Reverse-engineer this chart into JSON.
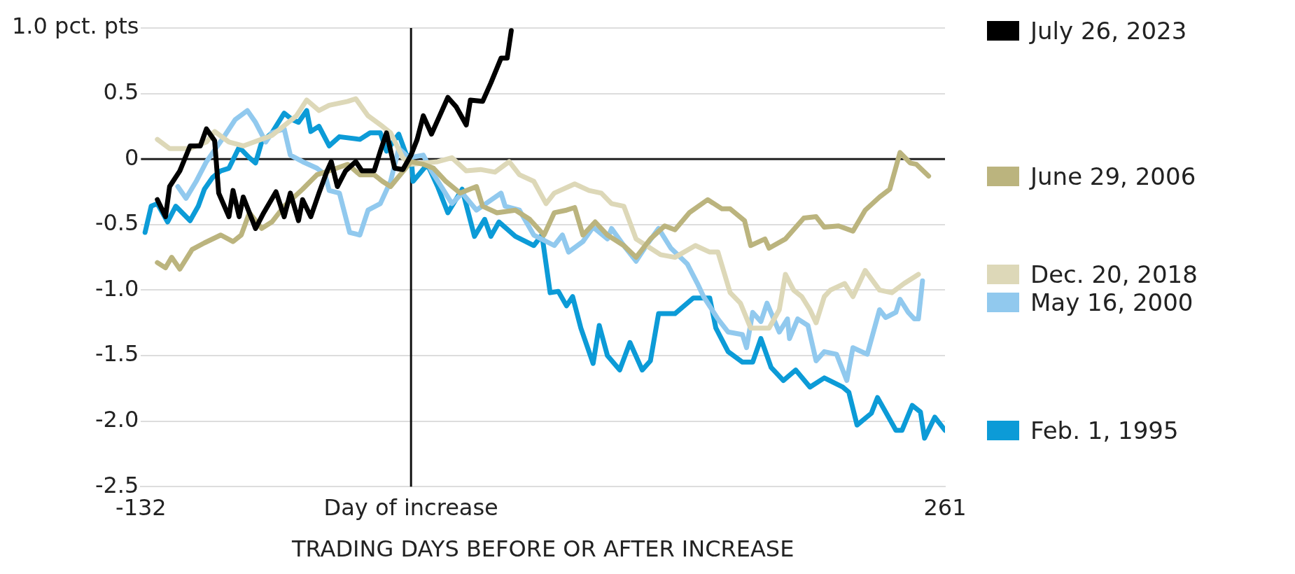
{
  "chart_data": {
    "type": "line",
    "xlabel": "TRADING DAYS BEFORE OR AFTER INCREASE",
    "xlim": [
      -132,
      261
    ],
    "xticks": [
      -132,
      {
        "value": 0,
        "label": "Day of increase"
      },
      261
    ],
    "ylim": [
      -2.5,
      1.0
    ],
    "yticks": [
      {
        "value": -2.5,
        "label": "-2.5"
      },
      {
        "value": -2,
        "label": "-2.0"
      },
      {
        "value": -1.5,
        "label": "-1.5"
      },
      {
        "value": -1,
        "label": "-1.0"
      },
      {
        "value": -0.5,
        "label": "-0.5"
      },
      0,
      {
        "value": 0.5,
        "label": "0.5"
      },
      {
        "value": 1,
        "label": "1.0 pct. pts"
      }
    ],
    "grid": "y",
    "legend": "right",
    "ref_lines": [
      {
        "axis": "y",
        "value": 0,
        "color": "#222222"
      },
      {
        "axis": "x",
        "value": 0,
        "color": "#111111"
      }
    ],
    "series": [
      {
        "name": "July 26, 2023",
        "color": "#000000",
        "x": [
          -124,
          -120,
          -118,
          -113,
          -108,
          -103,
          -100,
          -96,
          -94,
          -89,
          -87,
          -84,
          -82,
          -76,
          -72,
          -66,
          -62,
          -59,
          -55,
          -53,
          -49,
          -45,
          -41,
          -39,
          -36,
          -32,
          -27,
          -24,
          -18,
          -15,
          -12,
          -8,
          -4,
          0,
          3,
          6,
          10,
          18,
          22,
          27,
          29,
          35,
          39,
          44,
          47,
          49
        ],
        "values": [
          -0.31,
          -0.44,
          -0.21,
          -0.09,
          0.1,
          0.1,
          0.23,
          0.14,
          -0.26,
          -0.44,
          -0.24,
          -0.44,
          -0.29,
          -0.53,
          -0.41,
          -0.25,
          -0.44,
          -0.26,
          -0.47,
          -0.31,
          -0.44,
          -0.26,
          -0.09,
          -0.02,
          -0.21,
          -0.09,
          -0.02,
          -0.09,
          -0.09,
          0.06,
          0.2,
          -0.07,
          -0.08,
          0.03,
          0.15,
          0.33,
          0.19,
          0.47,
          0.4,
          0.26,
          0.45,
          0.44,
          0.58,
          0.77,
          0.77,
          0.98
        ]
      },
      {
        "name": "June 29, 2006",
        "color": "#bbb47e",
        "x": [
          -124,
          -120,
          -117,
          -113,
          -107,
          -101,
          -93,
          -87,
          -83,
          -79,
          -73,
          -68,
          -62,
          -53,
          -46,
          -40,
          -31,
          -25,
          -18,
          -14,
          -10,
          0,
          6,
          11,
          17,
          24,
          32,
          35,
          42,
          51,
          58,
          65,
          70,
          76,
          80,
          84,
          90,
          96,
          104,
          110,
          117,
          124,
          129,
          136,
          145,
          152,
          156,
          163,
          166,
          173,
          175,
          183,
          192,
          198,
          202,
          209,
          216,
          222,
          229,
          234,
          239,
          244,
          247,
          253
        ],
        "values": [
          -0.79,
          -0.83,
          -0.75,
          -0.84,
          -0.69,
          -0.64,
          -0.58,
          -0.63,
          -0.58,
          -0.41,
          -0.53,
          -0.48,
          -0.36,
          -0.23,
          -0.12,
          -0.09,
          -0.04,
          -0.12,
          -0.12,
          -0.17,
          -0.21,
          -0.02,
          -0.04,
          -0.07,
          -0.17,
          -0.26,
          -0.21,
          -0.36,
          -0.41,
          -0.39,
          -0.46,
          -0.58,
          -0.41,
          -0.39,
          -0.37,
          -0.58,
          -0.48,
          -0.58,
          -0.66,
          -0.75,
          -0.61,
          -0.51,
          -0.54,
          -0.41,
          -0.31,
          -0.38,
          -0.38,
          -0.47,
          -0.66,
          -0.61,
          -0.68,
          -0.61,
          -0.45,
          -0.44,
          -0.52,
          -0.51,
          -0.55,
          -0.39,
          -0.29,
          -0.23,
          0.05,
          -0.03,
          -0.04,
          -0.13
        ]
      },
      {
        "name": "Dec. 20, 2018",
        "color": "#ddd8b8",
        "x": [
          -124,
          -118,
          -108,
          -100,
          -96,
          -89,
          -82,
          -68,
          -56,
          -51,
          -45,
          -40,
          -31,
          -27,
          -21,
          -14,
          -10,
          -4,
          0,
          13,
          20,
          27,
          34,
          41,
          48,
          53,
          60,
          66,
          70,
          80,
          87,
          93,
          98,
          104,
          110,
          115,
          122,
          129,
          139,
          146,
          150,
          156,
          161,
          166,
          175,
          180,
          183,
          187,
          191,
          195,
          198,
          202,
          205,
          212,
          216,
          222,
          229,
          235,
          241,
          246,
          248
        ],
        "values": [
          0.15,
          0.08,
          0.08,
          0.13,
          0.21,
          0.13,
          0.1,
          0.18,
          0.33,
          0.45,
          0.37,
          0.41,
          0.44,
          0.46,
          0.33,
          0.25,
          0.2,
          0.01,
          -0.04,
          -0.02,
          0.01,
          -0.09,
          -0.08,
          -0.1,
          -0.02,
          -0.12,
          -0.17,
          -0.34,
          -0.26,
          -0.19,
          -0.24,
          -0.26,
          -0.34,
          -0.36,
          -0.61,
          -0.66,
          -0.73,
          -0.75,
          -0.66,
          -0.71,
          -0.71,
          -1.02,
          -1.1,
          -1.29,
          -1.29,
          -1.15,
          -0.88,
          -1.0,
          -1.05,
          -1.15,
          -1.25,
          -1.05,
          -1.0,
          -0.95,
          -1.05,
          -0.85,
          -1.0,
          -1.02,
          -0.95,
          -0.9,
          -0.88
        ]
      },
      {
        "name": "May 16, 2000",
        "color": "#91c9ee",
        "x": [
          -114,
          -110,
          -105,
          -100,
          -91,
          -86,
          -80,
          -76,
          -71,
          -68,
          -62,
          -59,
          -53,
          -46,
          -42,
          -40,
          -35,
          -30,
          -25,
          -21,
          -15,
          -10,
          -6,
          -1,
          6,
          10,
          20,
          25,
          32,
          44,
          46,
          53,
          60,
          70,
          74,
          77,
          84,
          89,
          96,
          98,
          104,
          110,
          115,
          121,
          127,
          135,
          140,
          143,
          150,
          155,
          162,
          164,
          167,
          171,
          174,
          180,
          184,
          185,
          189,
          194,
          198,
          202,
          208,
          213,
          216,
          223,
          229,
          232,
          237,
          239,
          243,
          246,
          248,
          250
        ],
        "values": [
          -0.21,
          -0.3,
          -0.17,
          -0.02,
          0.18,
          0.3,
          0.37,
          0.28,
          0.13,
          0.2,
          0.23,
          0.03,
          -0.02,
          -0.07,
          -0.12,
          -0.24,
          -0.26,
          -0.56,
          -0.58,
          -0.39,
          -0.34,
          -0.17,
          0.08,
          0.01,
          0.03,
          -0.09,
          -0.34,
          -0.26,
          -0.39,
          -0.26,
          -0.36,
          -0.39,
          -0.58,
          -0.66,
          -0.58,
          -0.71,
          -0.63,
          -0.52,
          -0.61,
          -0.53,
          -0.66,
          -0.78,
          -0.66,
          -0.53,
          -0.68,
          -0.8,
          -0.95,
          -1.05,
          -1.22,
          -1.32,
          -1.34,
          -1.44,
          -1.17,
          -1.24,
          -1.1,
          -1.32,
          -1.22,
          -1.37,
          -1.22,
          -1.27,
          -1.54,
          -1.47,
          -1.49,
          -1.69,
          -1.44,
          -1.49,
          -1.15,
          -1.21,
          -1.17,
          -1.07,
          -1.17,
          -1.22,
          -1.22,
          -0.93
        ]
      },
      {
        "name": "Feb. 1, 1995",
        "color": "#0c9bd7",
        "x": [
          -130,
          -127,
          -124,
          -119,
          -115,
          -108,
          -104,
          -101,
          -97,
          -93,
          -89,
          -84,
          -79,
          -76,
          -73,
          -68,
          -62,
          -58,
          -55,
          -51,
          -49,
          -45,
          -40,
          -35,
          -25,
          -20,
          -15,
          -12,
          -6,
          -2,
          0,
          1,
          8,
          13,
          18,
          25,
          31,
          36,
          39,
          43,
          51,
          60,
          64,
          68,
          72,
          76,
          79,
          83,
          89,
          92,
          96,
          102,
          107,
          113,
          117,
          121,
          129,
          138,
          146,
          149,
          155,
          162,
          167,
          171,
          176,
          182,
          188,
          195,
          202,
          211,
          214,
          218,
          225,
          228,
          237,
          240,
          245,
          249,
          251,
          256,
          261
        ],
        "values": [
          -0.56,
          -0.36,
          -0.34,
          -0.48,
          -0.36,
          -0.47,
          -0.36,
          -0.23,
          -0.14,
          -0.09,
          -0.07,
          0.09,
          0.01,
          -0.03,
          0.13,
          0.2,
          0.35,
          0.3,
          0.28,
          0.37,
          0.21,
          0.25,
          0.1,
          0.17,
          0.15,
          0.2,
          0.2,
          0.06,
          0.19,
          0.02,
          0.03,
          -0.17,
          -0.04,
          -0.21,
          -0.41,
          -0.23,
          -0.59,
          -0.46,
          -0.59,
          -0.48,
          -0.59,
          -0.66,
          -0.58,
          -1.02,
          -1.01,
          -1.12,
          -1.05,
          -1.29,
          -1.56,
          -1.27,
          -1.5,
          -1.61,
          -1.4,
          -1.61,
          -1.54,
          -1.18,
          -1.18,
          -1.06,
          -1.06,
          -1.29,
          -1.47,
          -1.55,
          -1.55,
          -1.37,
          -1.59,
          -1.69,
          -1.61,
          -1.74,
          -1.67,
          -1.74,
          -1.78,
          -2.03,
          -1.94,
          -1.82,
          -2.07,
          -2.07,
          -1.88,
          -1.93,
          -2.13,
          -1.97,
          -2.07
        ]
      }
    ]
  }
}
